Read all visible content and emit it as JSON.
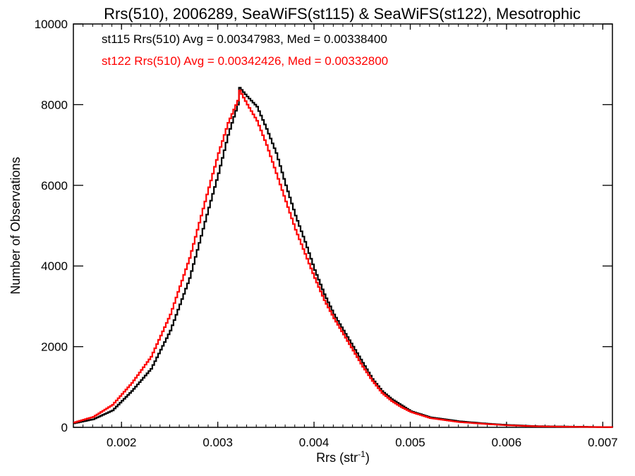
{
  "chart_data": {
    "type": "line",
    "title": "Rrs(510), 2006289, SeaWiFS(st115) & SeaWiFS(st122), Mesotrophic",
    "xlabel_main": "Rrs (str",
    "xlabel_sup": "-1",
    "xlabel_close": ")",
    "ylabel": "Number of Observations",
    "xlim": [
      0.0015,
      0.0071
    ],
    "ylim": [
      0,
      10000
    ],
    "x_ticks": [
      "0.002",
      "0.003",
      "0.004",
      "0.005",
      "0.006",
      "0.007"
    ],
    "y_ticks": [
      "0",
      "2000",
      "4000",
      "6000",
      "8000",
      "10000"
    ],
    "grid": false,
    "legend_position": "top-left",
    "series": [
      {
        "name": "st115",
        "label": "st115 Rrs(510) Avg = 0.00347983, Med = 0.00338400",
        "color": "#000000",
        "points": [
          [
            0.0015,
            100
          ],
          [
            0.0017,
            200
          ],
          [
            0.0019,
            420
          ],
          [
            0.0021,
            900
          ],
          [
            0.0023,
            1450
          ],
          [
            0.0025,
            2400
          ],
          [
            0.0027,
            3700
          ],
          [
            0.0029,
            5450
          ],
          [
            0.003,
            6300
          ],
          [
            0.0031,
            7250
          ],
          [
            0.0032,
            8000
          ],
          [
            0.00322,
            8420
          ],
          [
            0.0033,
            8200
          ],
          [
            0.0034,
            7950
          ],
          [
            0.0035,
            7400
          ],
          [
            0.0036,
            6800
          ],
          [
            0.0037,
            6000
          ],
          [
            0.0038,
            5250
          ],
          [
            0.0039,
            4600
          ],
          [
            0.004,
            3900
          ],
          [
            0.0041,
            3300
          ],
          [
            0.0042,
            2800
          ],
          [
            0.0043,
            2400
          ],
          [
            0.0044,
            2000
          ],
          [
            0.0045,
            1600
          ],
          [
            0.0046,
            1200
          ],
          [
            0.0047,
            900
          ],
          [
            0.0048,
            700
          ],
          [
            0.0049,
            550
          ],
          [
            0.005,
            400
          ],
          [
            0.0052,
            250
          ],
          [
            0.0055,
            150
          ],
          [
            0.0058,
            90
          ],
          [
            0.006,
            60
          ],
          [
            0.0063,
            30
          ],
          [
            0.0066,
            20
          ],
          [
            0.0069,
            10
          ],
          [
            0.0071,
            5
          ]
        ]
      },
      {
        "name": "st122",
        "label": "st122 Rrs(510) Avg = 0.00342426, Med = 0.00332800",
        "color": "#ff0000",
        "points": [
          [
            0.0015,
            120
          ],
          [
            0.0017,
            260
          ],
          [
            0.0019,
            560
          ],
          [
            0.0021,
            1100
          ],
          [
            0.0023,
            1750
          ],
          [
            0.0025,
            2800
          ],
          [
            0.0027,
            4200
          ],
          [
            0.0029,
            5950
          ],
          [
            0.003,
            6800
          ],
          [
            0.0031,
            7550
          ],
          [
            0.0032,
            8100
          ],
          [
            0.00322,
            8350
          ],
          [
            0.0033,
            8000
          ],
          [
            0.0034,
            7600
          ],
          [
            0.0035,
            7000
          ],
          [
            0.0036,
            6300
          ],
          [
            0.0037,
            5600
          ],
          [
            0.0038,
            4900
          ],
          [
            0.0039,
            4300
          ],
          [
            0.004,
            3700
          ],
          [
            0.0041,
            3150
          ],
          [
            0.0042,
            2700
          ],
          [
            0.0043,
            2300
          ],
          [
            0.0044,
            1900
          ],
          [
            0.0045,
            1500
          ],
          [
            0.0046,
            1150
          ],
          [
            0.0047,
            850
          ],
          [
            0.0048,
            650
          ],
          [
            0.0049,
            500
          ],
          [
            0.005,
            380
          ],
          [
            0.0052,
            230
          ],
          [
            0.0055,
            130
          ],
          [
            0.0058,
            80
          ],
          [
            0.006,
            50
          ],
          [
            0.0063,
            25
          ],
          [
            0.0066,
            15
          ],
          [
            0.0069,
            8
          ],
          [
            0.0071,
            4
          ]
        ]
      }
    ]
  }
}
